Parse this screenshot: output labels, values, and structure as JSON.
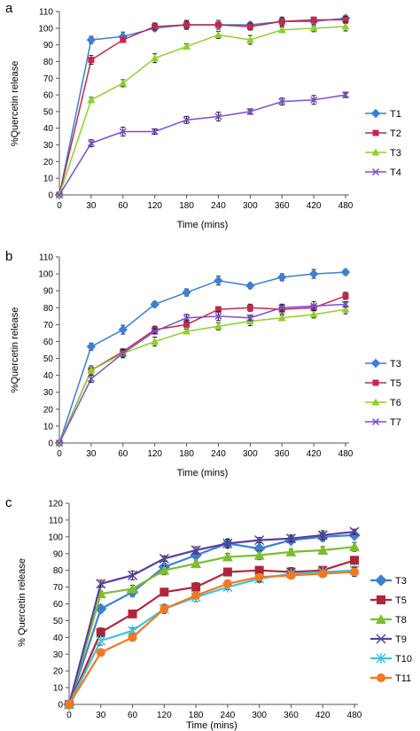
{
  "chart_data": [
    {
      "type": "line",
      "panel_label": "a",
      "categories": [
        "0",
        "30",
        "60",
        "120",
        "180",
        "240",
        "300",
        "360",
        "420",
        "480"
      ],
      "xlabel": "Time (mins)",
      "ylabel": "%Quercetin release",
      "ylim": [
        0,
        110
      ],
      "yticks": [
        0,
        10,
        20,
        30,
        40,
        50,
        60,
        70,
        80,
        90,
        100,
        110
      ],
      "grid": false,
      "legend_position": "right",
      "series": [
        {
          "name": "T1",
          "color": "#3d7fd1",
          "marker": "diamond",
          "values": [
            0,
            93,
            95,
            100,
            102,
            102,
            102,
            104,
            104,
            106
          ]
        },
        {
          "name": "T2",
          "color": "#c0294f",
          "marker": "square",
          "values": [
            0,
            81,
            93,
            101,
            102,
            102,
            101,
            104,
            105,
            105
          ]
        },
        {
          "name": "T3",
          "color": "#8ecf2e",
          "marker": "triangle",
          "values": [
            0,
            57,
            67,
            82,
            89,
            96,
            93,
            99,
            100,
            101
          ]
        },
        {
          "name": "T4",
          "color": "#7a4fcf",
          "marker": "x",
          "values": [
            0,
            31,
            38,
            38,
            45,
            47,
            50,
            56,
            57,
            60
          ]
        }
      ]
    },
    {
      "type": "line",
      "panel_label": "b",
      "categories": [
        "0",
        "30",
        "60",
        "120",
        "180",
        "240",
        "300",
        "360",
        "420",
        "480"
      ],
      "xlabel": "Time (mins)",
      "ylabel": "%Quercetin release",
      "ylim": [
        0,
        110
      ],
      "yticks": [
        0,
        10,
        20,
        30,
        40,
        50,
        60,
        70,
        80,
        90,
        100,
        110
      ],
      "grid": false,
      "legend_position": "right",
      "series": [
        {
          "name": "T3",
          "color": "#3d7fd1",
          "marker": "diamond",
          "values": [
            0,
            57,
            67,
            82,
            89,
            96,
            93,
            98,
            100,
            101
          ]
        },
        {
          "name": "T5",
          "color": "#c0294f",
          "marker": "square",
          "values": [
            0,
            43,
            54,
            67,
            70,
            79,
            80,
            79,
            80,
            87
          ]
        },
        {
          "name": "T6",
          "color": "#8ecf2e",
          "marker": "triangle",
          "values": [
            0,
            43,
            53,
            60,
            66,
            69,
            72,
            74,
            76,
            79
          ]
        },
        {
          "name": "T7",
          "color": "#7a4fcf",
          "marker": "x",
          "values": [
            0,
            38,
            53,
            66,
            74,
            75,
            74,
            80,
            81,
            82
          ]
        }
      ]
    },
    {
      "type": "line",
      "panel_label": "c",
      "categories": [
        "0",
        "30",
        "60",
        "120",
        "180",
        "240",
        "300",
        "360",
        "420",
        "480"
      ],
      "xlabel": "Time (mins)",
      "ylabel": "% Quercetin release",
      "ylim": [
        0,
        120
      ],
      "yticks": [
        0,
        10,
        20,
        30,
        40,
        50,
        60,
        70,
        80,
        90,
        100,
        110,
        120
      ],
      "grid": false,
      "legend_position": "right",
      "series": [
        {
          "name": "T3",
          "color": "#3d7fd1",
          "marker": "diamond",
          "values": [
            0,
            57,
            67,
            82,
            89,
            96,
            93,
            98,
            100,
            101
          ]
        },
        {
          "name": "T5",
          "color": "#b0243a",
          "marker": "square",
          "values": [
            0,
            43,
            54,
            67,
            70,
            79,
            80,
            79,
            80,
            86
          ]
        },
        {
          "name": "T8",
          "color": "#7dbd2f",
          "marker": "triangle",
          "values": [
            0,
            66,
            69,
            80,
            84,
            88,
            89,
            91,
            92,
            94
          ]
        },
        {
          "name": "T9",
          "color": "#5b3fa0",
          "marker": "x",
          "values": [
            0,
            72,
            77,
            87,
            92,
            96,
            98,
            99,
            101,
            103
          ]
        },
        {
          "name": "T10",
          "color": "#3fc4d9",
          "marker": "asterisk",
          "values": [
            0,
            38,
            44,
            57,
            64,
            70,
            75,
            78,
            79,
            80
          ]
        },
        {
          "name": "T11",
          "color": "#f07a22",
          "marker": "circle",
          "values": [
            0,
            31,
            40,
            57,
            65,
            72,
            76,
            77,
            78,
            79
          ]
        }
      ]
    }
  ]
}
